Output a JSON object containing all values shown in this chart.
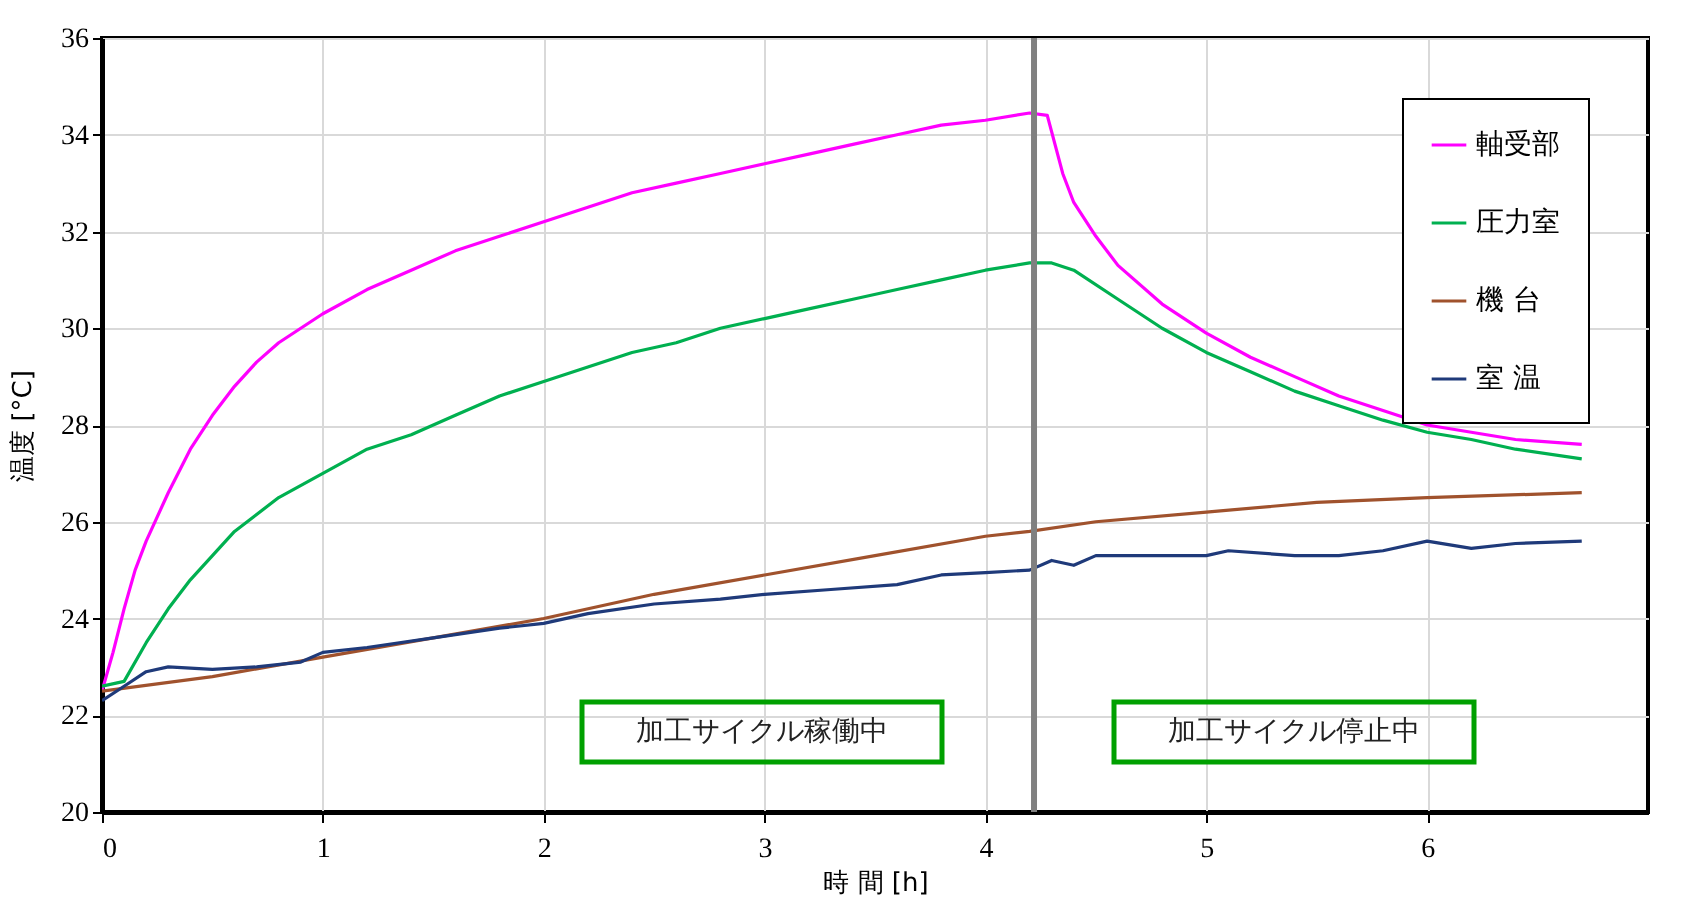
{
  "chart_data": {
    "type": "line",
    "xlabel": "時 間 [h]",
    "ylabel": "温度 [°C]",
    "xlim": [
      0,
      7
    ],
    "xticks": [
      0,
      1,
      2,
      3,
      4,
      5,
      6
    ],
    "ylim": [
      20,
      36
    ],
    "yticks": [
      20,
      22,
      24,
      26,
      28,
      30,
      32,
      34,
      36
    ],
    "grid": true,
    "legend": "top right",
    "marker": "none",
    "line_style": "solid",
    "series": [
      {
        "name": "軸受部",
        "color": "#ff00ff",
        "x": [
          0,
          0.05,
          0.1,
          0.15,
          0.2,
          0.3,
          0.4,
          0.5,
          0.6,
          0.7,
          0.8,
          0.9,
          1.0,
          1.2,
          1.4,
          1.6,
          1.8,
          2.0,
          2.2,
          2.4,
          2.6,
          2.8,
          3.0,
          3.2,
          3.4,
          3.6,
          3.8,
          4.0,
          4.2,
          4.28,
          4.35,
          4.4,
          4.5,
          4.6,
          4.8,
          5.0,
          5.2,
          5.4,
          5.6,
          5.8,
          6.0,
          6.2,
          6.4,
          6.7
        ],
        "values": [
          22.5,
          23.3,
          24.2,
          25.0,
          25.6,
          26.6,
          27.5,
          28.2,
          28.8,
          29.3,
          29.7,
          30.0,
          30.3,
          30.8,
          31.2,
          31.6,
          31.9,
          32.2,
          32.5,
          32.8,
          33.0,
          33.2,
          33.4,
          33.6,
          33.8,
          34.0,
          34.2,
          34.3,
          34.45,
          34.4,
          33.2,
          32.6,
          31.9,
          31.3,
          30.5,
          29.9,
          29.4,
          29.0,
          28.6,
          28.3,
          28.0,
          27.85,
          27.7,
          27.6
        ]
      },
      {
        "name": "圧力室",
        "color": "#00b050",
        "x": [
          0,
          0.1,
          0.2,
          0.3,
          0.4,
          0.5,
          0.6,
          0.8,
          1.0,
          1.2,
          1.4,
          1.6,
          1.8,
          2.0,
          2.2,
          2.4,
          2.6,
          2.8,
          3.0,
          3.2,
          3.4,
          3.6,
          3.8,
          4.0,
          4.2,
          4.3,
          4.4,
          4.6,
          4.8,
          5.0,
          5.2,
          5.4,
          5.6,
          5.8,
          6.0,
          6.2,
          6.4,
          6.7
        ],
        "values": [
          22.6,
          22.7,
          23.5,
          24.2,
          24.8,
          25.3,
          25.8,
          26.5,
          27.0,
          27.5,
          27.8,
          28.2,
          28.6,
          28.9,
          29.2,
          29.5,
          29.7,
          30.0,
          30.2,
          30.4,
          30.6,
          30.8,
          31.0,
          31.2,
          31.35,
          31.35,
          31.2,
          30.6,
          30.0,
          29.5,
          29.1,
          28.7,
          28.4,
          28.1,
          27.85,
          27.7,
          27.5,
          27.3
        ]
      },
      {
        "name": "機 台",
        "color": "#a0522d",
        "x": [
          0,
          0.5,
          1.0,
          1.5,
          2.0,
          2.5,
          3.0,
          3.5,
          4.0,
          4.2,
          4.5,
          5.0,
          5.5,
          6.0,
          6.7
        ],
        "values": [
          22.5,
          22.8,
          23.2,
          23.6,
          24.0,
          24.5,
          24.9,
          25.3,
          25.7,
          25.8,
          26.0,
          26.2,
          26.4,
          26.5,
          26.6
        ]
      },
      {
        "name": "室 温",
        "color": "#1f3a7a",
        "x": [
          0,
          0.1,
          0.2,
          0.3,
          0.5,
          0.7,
          0.9,
          1.0,
          1.2,
          1.5,
          1.8,
          2.0,
          2.2,
          2.5,
          2.8,
          3.0,
          3.3,
          3.6,
          3.8,
          4.0,
          4.2,
          4.3,
          4.4,
          4.5,
          4.7,
          5.0,
          5.1,
          5.4,
          5.6,
          5.8,
          6.0,
          6.2,
          6.4,
          6.7
        ],
        "values": [
          22.3,
          22.6,
          22.9,
          23.0,
          22.95,
          23.0,
          23.1,
          23.3,
          23.4,
          23.6,
          23.8,
          23.9,
          24.1,
          24.3,
          24.4,
          24.5,
          24.6,
          24.7,
          24.9,
          24.95,
          25.0,
          25.2,
          25.1,
          25.3,
          25.3,
          25.3,
          25.4,
          25.3,
          25.3,
          25.4,
          25.6,
          25.45,
          25.55,
          25.6
        ]
      }
    ],
    "ref_lines": [
      {
        "axis": "x",
        "value": 4.22,
        "color": "#808080"
      }
    ],
    "annotations": [
      "加工サイクル稼働中",
      "加工サイクル停止中"
    ]
  }
}
